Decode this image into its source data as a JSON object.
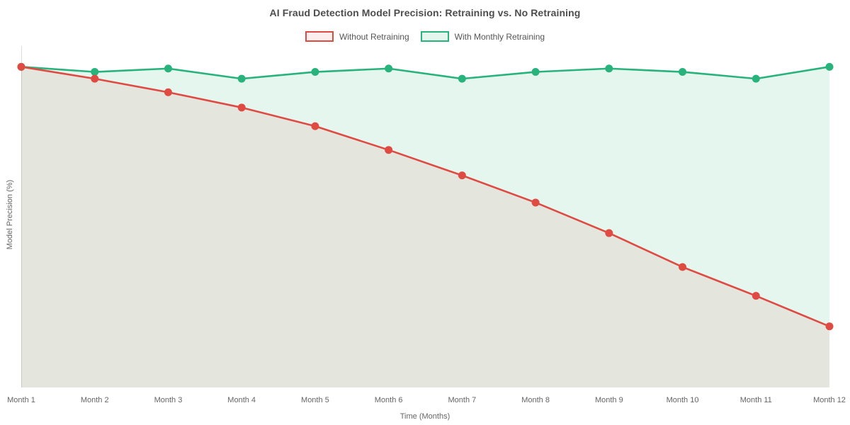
{
  "chart_data": {
    "type": "line",
    "title": "AI Fraud Detection Model Precision: Retraining vs. No Retraining",
    "xlabel": "Time (Months)",
    "ylabel": "Model Precision (%)",
    "x": [
      "Month 1",
      "Month 2",
      "Month 3",
      "Month 4",
      "Month 5",
      "Month 6",
      "Month 7",
      "Month 8",
      "Month 9",
      "Month 10",
      "Month 11",
      "Month 12"
    ],
    "series": [
      {
        "id": "without-retraining",
        "name": "Without Retraining",
        "color": "#df4b43",
        "area_fill": "rgba(223,75,67,0.10)",
        "legend_fill": "#fceeec",
        "values": [
          94.5,
          91,
          87,
          82.5,
          77,
          70,
          62.5,
          54.5,
          45.5,
          35.5,
          27,
          18
        ]
      },
      {
        "id": "with-monthly-retraining",
        "name": "With Monthly Retraining",
        "color": "#28b27c",
        "area_fill": "rgba(40,178,124,0.12)",
        "legend_fill": "#e5f6ef",
        "values": [
          94.5,
          93,
          94,
          91,
          93,
          94,
          91,
          93,
          94,
          93,
          91,
          94.5
        ]
      }
    ],
    "ylim": [
      0,
      100
    ],
    "grid": false,
    "y_tick_labels_visible": false,
    "axis_line_color": "#dcdcdc",
    "legend_position": "top"
  }
}
